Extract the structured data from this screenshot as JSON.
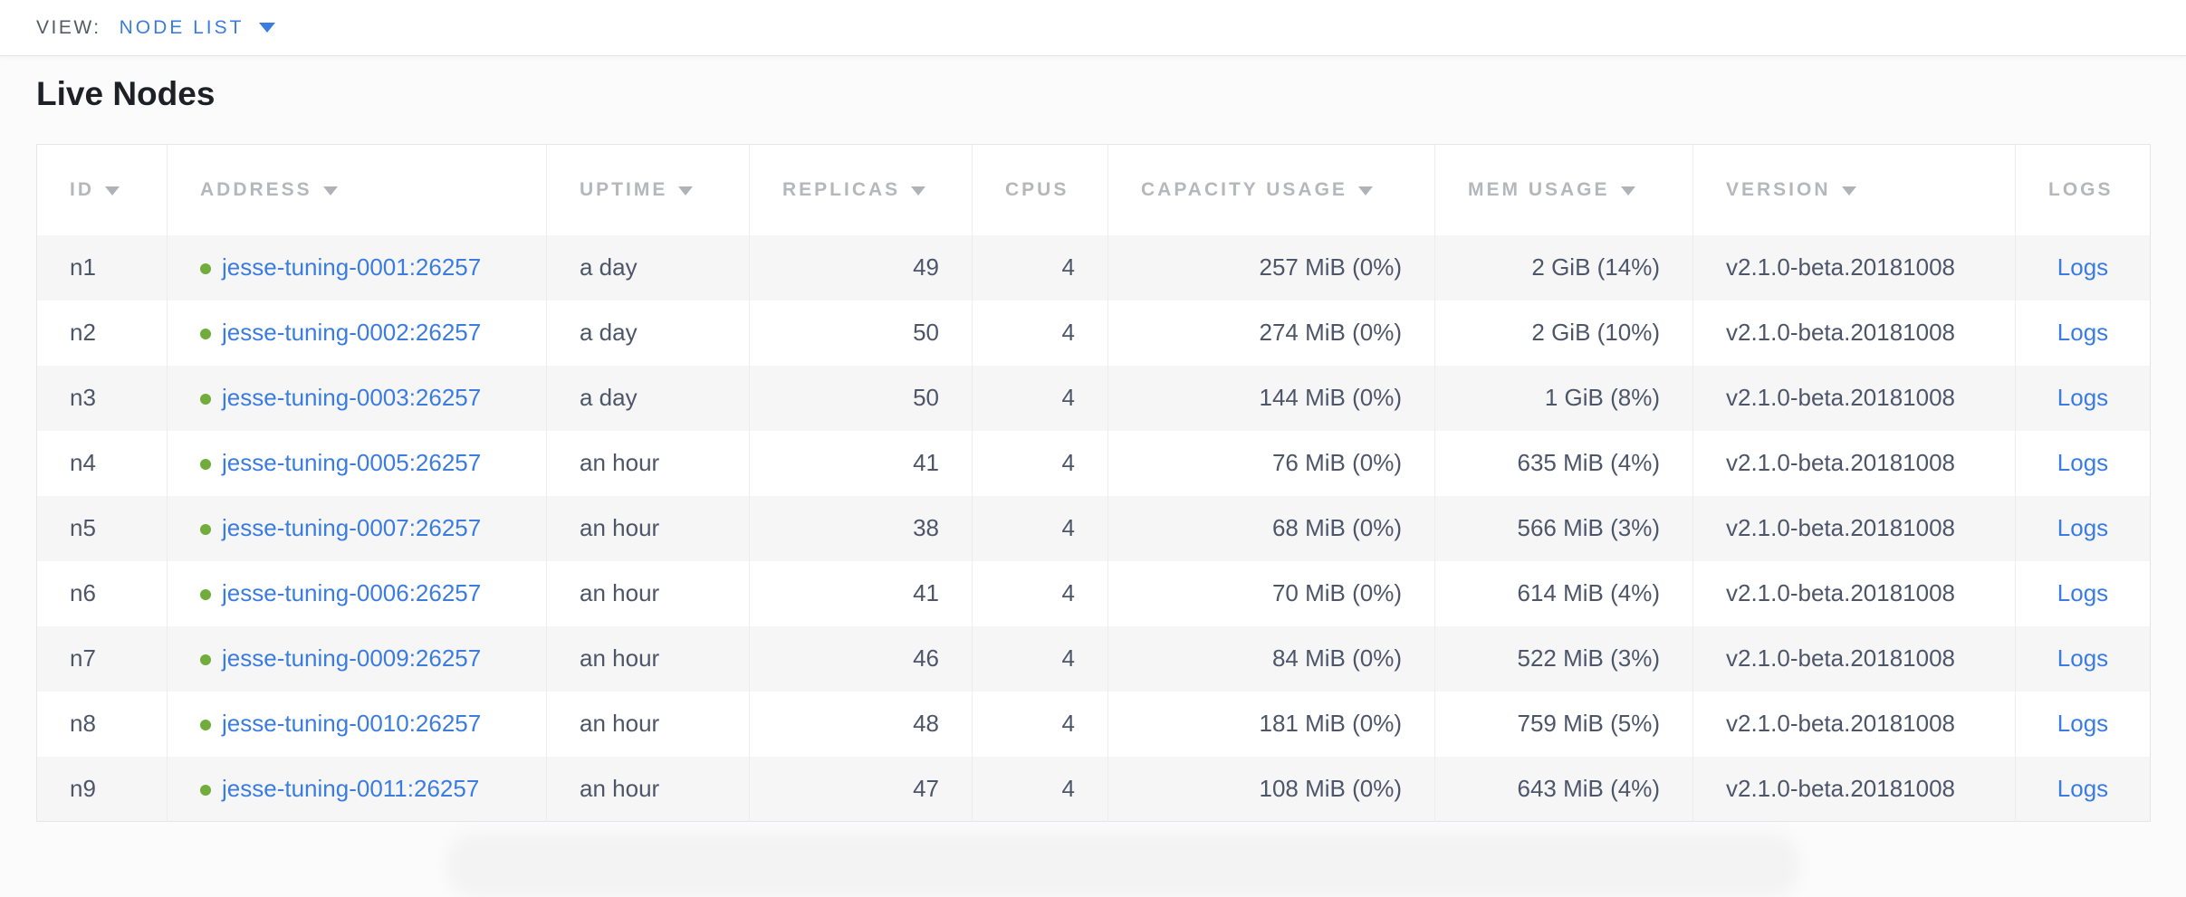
{
  "view_bar": {
    "label": "VIEW:",
    "selected": "NODE LIST",
    "caret_icon": "chevron-down"
  },
  "section": {
    "title": "Live Nodes"
  },
  "table": {
    "columns": [
      {
        "key": "id",
        "label": "ID",
        "sorted": true
      },
      {
        "key": "address",
        "label": "ADDRESS",
        "sorted": true
      },
      {
        "key": "uptime",
        "label": "UPTIME",
        "sorted": true
      },
      {
        "key": "replicas",
        "label": "REPLICAS",
        "sorted": true
      },
      {
        "key": "cpus",
        "label": "CPUS",
        "sorted": false
      },
      {
        "key": "capacity",
        "label": "CAPACITY USAGE",
        "sorted": true
      },
      {
        "key": "mem",
        "label": "MEM USAGE",
        "sorted": true
      },
      {
        "key": "version",
        "label": "VERSION",
        "sorted": true
      },
      {
        "key": "logs",
        "label": "LOGS",
        "sorted": false
      }
    ],
    "rows": [
      {
        "id": "n1",
        "status": "live",
        "address": "jesse-tuning-0001:26257",
        "uptime": "a day",
        "replicas": "49",
        "cpus": "4",
        "capacity": "257 MiB (0%)",
        "mem": "2 GiB (14%)",
        "version": "v2.1.0-beta.20181008",
        "logs": "Logs"
      },
      {
        "id": "n2",
        "status": "live",
        "address": "jesse-tuning-0002:26257",
        "uptime": "a day",
        "replicas": "50",
        "cpus": "4",
        "capacity": "274 MiB (0%)",
        "mem": "2 GiB (10%)",
        "version": "v2.1.0-beta.20181008",
        "logs": "Logs"
      },
      {
        "id": "n3",
        "status": "live",
        "address": "jesse-tuning-0003:26257",
        "uptime": "a day",
        "replicas": "50",
        "cpus": "4",
        "capacity": "144 MiB (0%)",
        "mem": "1 GiB (8%)",
        "version": "v2.1.0-beta.20181008",
        "logs": "Logs"
      },
      {
        "id": "n4",
        "status": "live",
        "address": "jesse-tuning-0005:26257",
        "uptime": "an hour",
        "replicas": "41",
        "cpus": "4",
        "capacity": "76 MiB (0%)",
        "mem": "635 MiB (4%)",
        "version": "v2.1.0-beta.20181008",
        "logs": "Logs"
      },
      {
        "id": "n5",
        "status": "live",
        "address": "jesse-tuning-0007:26257",
        "uptime": "an hour",
        "replicas": "38",
        "cpus": "4",
        "capacity": "68 MiB (0%)",
        "mem": "566 MiB (3%)",
        "version": "v2.1.0-beta.20181008",
        "logs": "Logs"
      },
      {
        "id": "n6",
        "status": "live",
        "address": "jesse-tuning-0006:26257",
        "uptime": "an hour",
        "replicas": "41",
        "cpus": "4",
        "capacity": "70 MiB (0%)",
        "mem": "614 MiB (4%)",
        "version": "v2.1.0-beta.20181008",
        "logs": "Logs"
      },
      {
        "id": "n7",
        "status": "live",
        "address": "jesse-tuning-0009:26257",
        "uptime": "an hour",
        "replicas": "46",
        "cpus": "4",
        "capacity": "84 MiB (0%)",
        "mem": "522 MiB (3%)",
        "version": "v2.1.0-beta.20181008",
        "logs": "Logs"
      },
      {
        "id": "n8",
        "status": "live",
        "address": "jesse-tuning-0010:26257",
        "uptime": "an hour",
        "replicas": "48",
        "cpus": "4",
        "capacity": "181 MiB (0%)",
        "mem": "759 MiB (5%)",
        "version": "v2.1.0-beta.20181008",
        "logs": "Logs"
      },
      {
        "id": "n9",
        "status": "live",
        "address": "jesse-tuning-0011:26257",
        "uptime": "an hour",
        "replicas": "47",
        "cpus": "4",
        "capacity": "108 MiB (0%)",
        "mem": "643 MiB (4%)",
        "version": "v2.1.0-beta.20181008",
        "logs": "Logs"
      }
    ]
  },
  "colors": {
    "accent_blue": "#3b7ce0",
    "live_green": "#70ad3d",
    "header_text": "#b5b7bd",
    "cell_text": "#4d5669",
    "row_stripe": "#f6f6f7"
  }
}
